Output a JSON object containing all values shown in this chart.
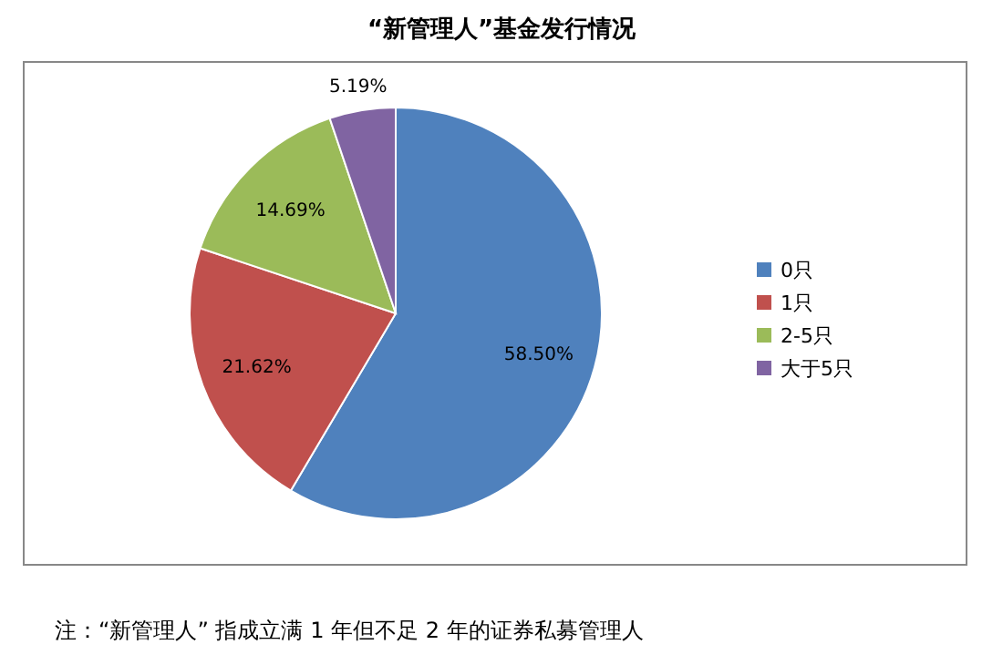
{
  "chart_data": {
    "type": "pie",
    "title": "“新管理人”基金发行情况",
    "categories": [
      "0只",
      "1只",
      "2-5只",
      "大于5只"
    ],
    "values": [
      58.5,
      21.62,
      14.69,
      5.19
    ],
    "colors": [
      "#4f81bd",
      "#c0504d",
      "#9bbb59",
      "#8064a2"
    ],
    "value_labels": [
      "58.50%",
      "21.62%",
      "14.69%",
      "5.19%"
    ],
    "legend": "right",
    "annotations": [
      "注：“新管理人” 指成立满 1 年但不足 2 年的证券私募管理人"
    ]
  }
}
